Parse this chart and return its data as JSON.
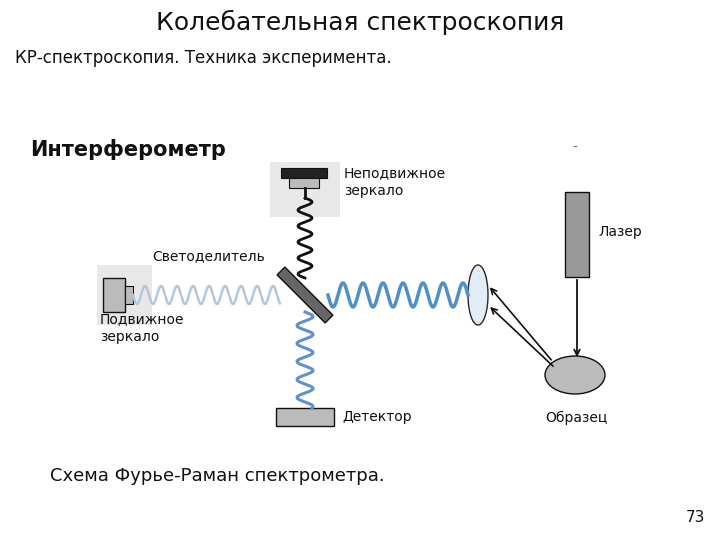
{
  "title": "Колебательная спектроскопия",
  "subtitle": "КР-спектроскопия. Техника эксперимента.",
  "caption": "Схема Фурье-Раман спектрометра.",
  "page_number": "73",
  "bg_color": "#ffffff",
  "title_fontsize": 18,
  "subtitle_fontsize": 12,
  "caption_fontsize": 13,
  "interferometer_label": "Интерферометр",
  "fixed_mirror_label": "Неподвижное\nзеркало",
  "beamsplitter_label": "Светоделитель",
  "moving_mirror_label": "Подвижное\nзеркало",
  "detector_label": "Детектор",
  "laser_label": "Лазер",
  "sample_label": "Образец",
  "wave_color_left": "#b0c8e0",
  "wave_color_right": "#5090c8",
  "wave_color_vertical_up": "#111111",
  "wave_color_vertical_dn": "#6090d0",
  "dark_color": "#111111",
  "gray_color": "#888888",
  "light_gray": "#bbbbbb",
  "mirror_gray": "#999999",
  "bs_gray": "#777777"
}
